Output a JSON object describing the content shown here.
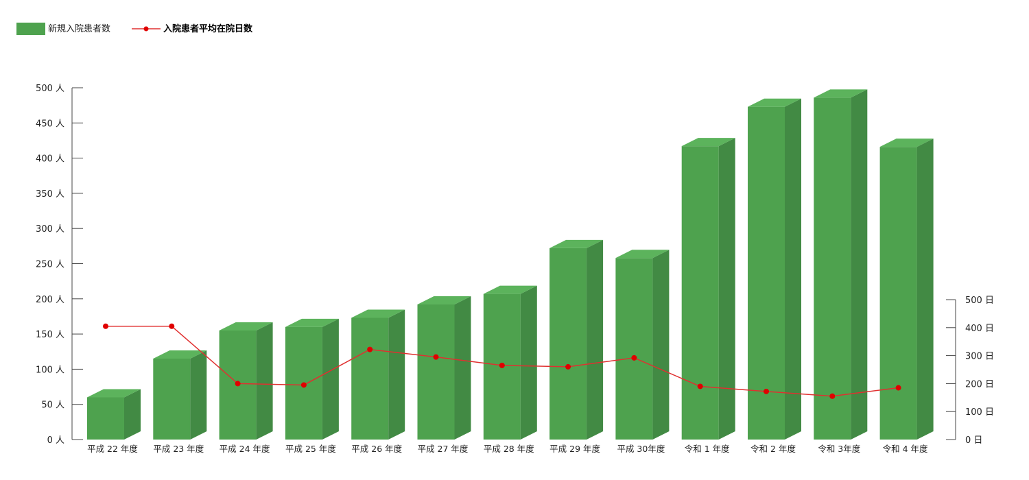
{
  "chart_data": {
    "type": "bar",
    "categories": [
      "平成 22 年度",
      "平成 23 年度",
      "平成 24 年度",
      "平成 25 年度",
      "平成 26 年度",
      "平成 27 年度",
      "平成 28 年度",
      "平成 29 年度",
      "平成 30年度",
      "令和 1 年度",
      "令和 2 年度",
      "令和 3年度",
      "令和 4 年度"
    ],
    "series": [
      {
        "name": "新規入院患者数",
        "kind": "bar",
        "axis": "left",
        "color": "#4ea24e",
        "values": [
          60,
          115,
          155,
          160,
          173,
          192,
          207,
          272,
          258,
          417,
          473,
          486,
          416
        ]
      },
      {
        "name": "入院患者平均在院日数",
        "kind": "line",
        "axis": "right",
        "color": "#e03030",
        "values": [
          405,
          405,
          200,
          195,
          322,
          295,
          265,
          260,
          292,
          190,
          172,
          155,
          185
        ]
      }
    ],
    "left_axis": {
      "ylim": [
        0,
        500
      ],
      "ticks": [
        "0 人",
        "50 人",
        "100 人",
        "150 人",
        "200 人",
        "250 人",
        "300 人",
        "350 人",
        "400 人",
        "450 人",
        "500 人"
      ]
    },
    "right_axis": {
      "ylim": [
        0,
        500
      ],
      "ticks": [
        "0 日",
        "100 日",
        "200 日",
        "300 日",
        "400 日",
        "500 日"
      ]
    },
    "legend_position": "top-left",
    "grid": false
  }
}
